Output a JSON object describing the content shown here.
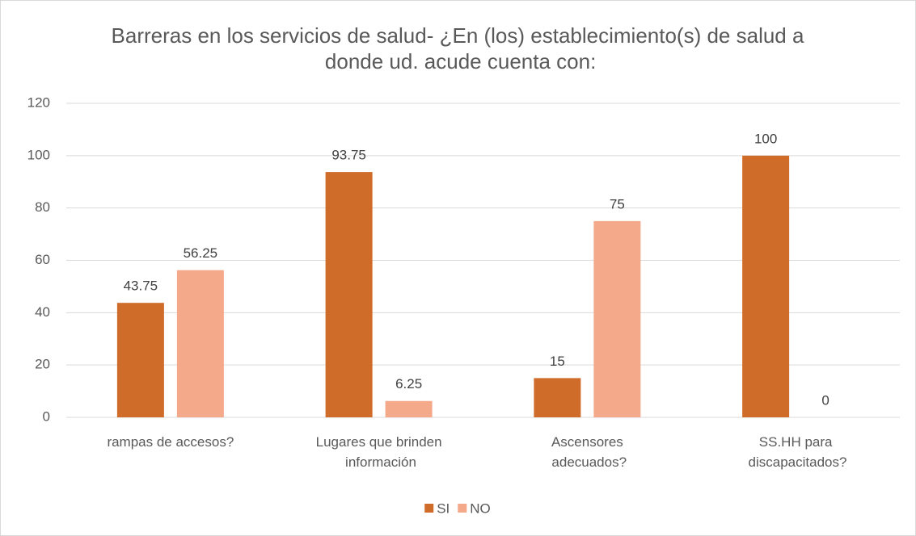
{
  "chart_data": {
    "type": "bar",
    "title": "Barreras en los servicios de salud- ¿En (los) establecimiento(s) de salud a donde ud. acude cuenta con:",
    "categories": [
      "rampas de accesos?",
      "Lugares que brinden información",
      "Ascensores adecuados?",
      "SS.HH para discapacitados?"
    ],
    "series": [
      {
        "name": "SI",
        "color": "#d06c2a",
        "values": [
          43.75,
          93.75,
          15,
          100
        ]
      },
      {
        "name": "NO",
        "color": "#f4a98b",
        "values": [
          56.25,
          6.25,
          75,
          0
        ]
      }
    ],
    "ylim": [
      0,
      120
    ],
    "yticks": [
      0,
      20,
      40,
      60,
      80,
      100,
      120
    ],
    "grid": true,
    "legend": "bottom"
  }
}
